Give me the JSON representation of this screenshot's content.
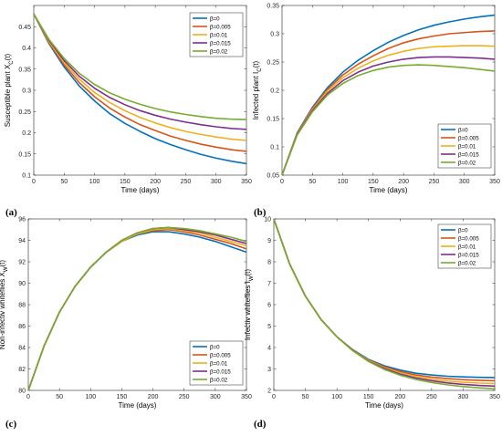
{
  "colors": {
    "beta_0": "#0072BD",
    "beta_0.005": "#D95319",
    "beta_0.01": "#EDB120",
    "beta_0.015": "#7E2F8E",
    "beta_0.02": "#77AC30"
  },
  "chart_data": [
    {
      "panel": "a",
      "type": "line",
      "xlabel": "Time (days)",
      "ylabel": "Susceptible plant X_{C}(t)",
      "xlim": [
        0,
        350
      ],
      "ylim": [
        0.1,
        0.5
      ],
      "xticks": [
        0,
        50,
        100,
        150,
        200,
        250,
        300,
        350
      ],
      "yticks": [
        0.1,
        0.15,
        0.2,
        0.25,
        0.3,
        0.35,
        0.4,
        0.45
      ],
      "legend_location": "top-right",
      "x": [
        0,
        25,
        50,
        75,
        100,
        125,
        150,
        175,
        200,
        225,
        250,
        275,
        300,
        325,
        350
      ],
      "series": [
        {
          "name": "β=0",
          "values": [
            0.48,
            0.41,
            0.355,
            0.31,
            0.275,
            0.245,
            0.222,
            0.203,
            0.186,
            0.172,
            0.16,
            0.149,
            0.14,
            0.133,
            0.127
          ]
        },
        {
          "name": "β=0.005",
          "values": [
            0.48,
            0.412,
            0.36,
            0.318,
            0.285,
            0.258,
            0.237,
            0.219,
            0.205,
            0.192,
            0.182,
            0.173,
            0.166,
            0.16,
            0.156
          ]
        },
        {
          "name": "β=0.01",
          "values": [
            0.48,
            0.415,
            0.365,
            0.326,
            0.295,
            0.271,
            0.252,
            0.236,
            0.223,
            0.212,
            0.203,
            0.196,
            0.19,
            0.185,
            0.182
          ]
        },
        {
          "name": "β=0.015",
          "values": [
            0.48,
            0.418,
            0.37,
            0.333,
            0.305,
            0.283,
            0.266,
            0.252,
            0.241,
            0.232,
            0.225,
            0.219,
            0.214,
            0.21,
            0.208
          ]
        },
        {
          "name": "β=0.02",
          "values": [
            0.48,
            0.42,
            0.375,
            0.34,
            0.314,
            0.294,
            0.279,
            0.267,
            0.257,
            0.249,
            0.243,
            0.238,
            0.234,
            0.232,
            0.231
          ]
        }
      ]
    },
    {
      "panel": "b",
      "type": "line",
      "xlabel": "Time (days)",
      "ylabel": "Infected plant I_{C}(t)",
      "xlim": [
        0,
        350
      ],
      "ylim": [
        0.05,
        0.35
      ],
      "xticks": [
        0,
        50,
        100,
        150,
        200,
        250,
        300,
        350
      ],
      "yticks": [
        0.05,
        0.1,
        0.15,
        0.2,
        0.25,
        0.3,
        0.35
      ],
      "legend_location": "bottom-right",
      "x": [
        0,
        25,
        50,
        75,
        100,
        125,
        150,
        175,
        200,
        225,
        250,
        275,
        300,
        325,
        350
      ],
      "series": [
        {
          "name": "β=0",
          "values": [
            0.05,
            0.125,
            0.17,
            0.205,
            0.232,
            0.253,
            0.27,
            0.285,
            0.297,
            0.307,
            0.315,
            0.321,
            0.326,
            0.33,
            0.333
          ]
        },
        {
          "name": "β=0.005",
          "values": [
            0.05,
            0.124,
            0.168,
            0.202,
            0.227,
            0.246,
            0.261,
            0.274,
            0.284,
            0.291,
            0.296,
            0.3,
            0.302,
            0.304,
            0.305
          ]
        },
        {
          "name": "β=0.01",
          "values": [
            0.05,
            0.123,
            0.166,
            0.199,
            0.222,
            0.239,
            0.252,
            0.262,
            0.269,
            0.274,
            0.277,
            0.278,
            0.279,
            0.279,
            0.278
          ]
        },
        {
          "name": "β=0.015",
          "values": [
            0.05,
            0.122,
            0.164,
            0.195,
            0.217,
            0.232,
            0.243,
            0.25,
            0.255,
            0.258,
            0.259,
            0.259,
            0.258,
            0.257,
            0.255
          ]
        },
        {
          "name": "β=0.02",
          "values": [
            0.05,
            0.121,
            0.162,
            0.192,
            0.212,
            0.226,
            0.235,
            0.241,
            0.244,
            0.245,
            0.244,
            0.242,
            0.24,
            0.237,
            0.234
          ]
        }
      ]
    },
    {
      "panel": "c",
      "type": "line",
      "xlabel": "Time (days)",
      "ylabel": "Non-infectiv whiteflies X_{W}(t)",
      "xlim": [
        0,
        350
      ],
      "ylim": [
        80,
        96
      ],
      "xticks": [
        0,
        50,
        100,
        150,
        200,
        250,
        300,
        350
      ],
      "yticks": [
        80,
        82,
        84,
        86,
        88,
        90,
        92,
        94,
        96
      ],
      "legend_location": "bottom-right",
      "x": [
        0,
        25,
        50,
        75,
        100,
        125,
        150,
        175,
        200,
        225,
        250,
        275,
        300,
        325,
        350
      ],
      "series": [
        {
          "name": "β=0",
          "values": [
            80,
            84.1,
            87.3,
            89.7,
            91.5,
            92.9,
            93.9,
            94.5,
            94.8,
            94.8,
            94.6,
            94.3,
            93.9,
            93.4,
            92.9
          ]
        },
        {
          "name": "β=0.005",
          "values": [
            80,
            84.1,
            87.3,
            89.7,
            91.5,
            92.9,
            93.9,
            94.6,
            94.9,
            95.0,
            94.8,
            94.5,
            94.1,
            93.7,
            93.2
          ]
        },
        {
          "name": "β=0.01",
          "values": [
            80,
            84.1,
            87.3,
            89.7,
            91.5,
            92.9,
            93.9,
            94.6,
            95.0,
            95.1,
            94.9,
            94.7,
            94.3,
            93.9,
            93.5
          ]
        },
        {
          "name": "β=0.015",
          "values": [
            80,
            84.1,
            87.3,
            89.7,
            91.5,
            92.9,
            94.0,
            94.7,
            95.1,
            95.2,
            95.0,
            94.8,
            94.5,
            94.1,
            93.7
          ]
        },
        {
          "name": "β=0.02",
          "values": [
            80,
            84.1,
            87.3,
            89.7,
            91.5,
            92.9,
            94.0,
            94.7,
            95.1,
            95.2,
            95.1,
            94.9,
            94.6,
            94.3,
            93.9
          ]
        }
      ]
    },
    {
      "panel": "d",
      "type": "line",
      "xlabel": "Time (days)",
      "ylabel": "Infectiv whiteflies I_{W}(t)",
      "xlim": [
        0,
        350
      ],
      "ylim": [
        2,
        10
      ],
      "xticks": [
        0,
        50,
        100,
        150,
        200,
        250,
        300,
        350
      ],
      "yticks": [
        2,
        3,
        4,
        5,
        6,
        7,
        8,
        9,
        10
      ],
      "legend_location": "top-right",
      "x": [
        0,
        25,
        50,
        75,
        100,
        125,
        150,
        175,
        200,
        225,
        250,
        275,
        300,
        325,
        350
      ],
      "series": [
        {
          "name": "β=0",
          "values": [
            10,
            7.9,
            6.4,
            5.3,
            4.5,
            3.9,
            3.45,
            3.15,
            2.95,
            2.8,
            2.72,
            2.66,
            2.63,
            2.61,
            2.6
          ]
        },
        {
          "name": "β=0.005",
          "values": [
            10,
            7.9,
            6.4,
            5.3,
            4.5,
            3.88,
            3.42,
            3.1,
            2.88,
            2.72,
            2.62,
            2.55,
            2.5,
            2.47,
            2.45
          ]
        },
        {
          "name": "β=0.01",
          "values": [
            10,
            7.9,
            6.4,
            5.3,
            4.5,
            3.87,
            3.4,
            3.06,
            2.82,
            2.65,
            2.53,
            2.44,
            2.38,
            2.34,
            2.32
          ]
        },
        {
          "name": "β=0.015",
          "values": [
            10,
            7.9,
            6.4,
            5.3,
            4.5,
            3.86,
            3.37,
            3.02,
            2.76,
            2.58,
            2.45,
            2.35,
            2.28,
            2.23,
            2.2
          ]
        },
        {
          "name": "β=0.02",
          "values": [
            10,
            7.9,
            6.4,
            5.3,
            4.5,
            3.85,
            3.35,
            2.98,
            2.71,
            2.51,
            2.37,
            2.26,
            2.18,
            2.12,
            2.08
          ]
        }
      ]
    }
  ],
  "panel_labels": {
    "a": "(a)",
    "b": "(b)",
    "c": "(c)",
    "d": "(d)"
  }
}
